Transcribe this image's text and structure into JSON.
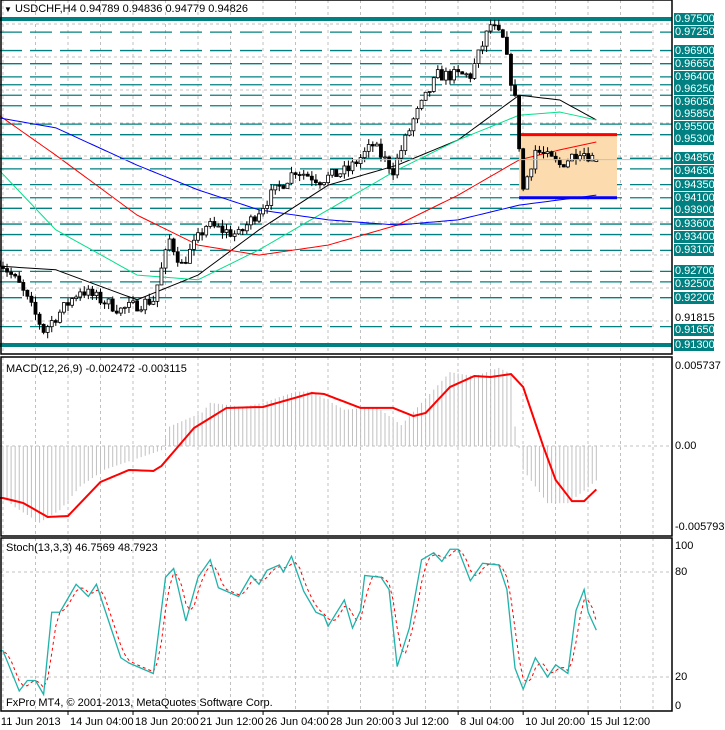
{
  "header": {
    "icon": "arrow-down-icon",
    "symbol": "USDCHF,H4",
    "open": "0.94789",
    "high": "0.94836",
    "low": "0.94779",
    "close": "0.94826"
  },
  "copyright": "FxPro MT4, © 2001-2013, MetaQuotes Software Corp.",
  "colors": {
    "level_line": "#008080",
    "ma_black": "#000000",
    "ma_green": "#00e08a",
    "ma_red": "#ff0000",
    "ma_blue": "#0000ff",
    "box_fill": "#fcdcae",
    "stoch_main": "#20b2aa",
    "stoch_signal": "#ff0000",
    "macd_hist": "#c0c0c0",
    "macd_signal": "#ff0000"
  },
  "chart_data": [
    {
      "type": "candlestick",
      "title": "USDCHF,H4",
      "ylim": [
        0.913,
        0.975
      ],
      "price_levels": [
        "0.97500",
        "0.97250",
        "0.96900",
        "0.96650",
        "0.96400",
        "0.96250",
        "0.96050",
        "0.95850",
        "0.95500",
        "0.95300",
        "0.94850",
        "0.94650",
        "0.94350",
        "0.94100",
        "0.93900",
        "0.93600",
        "0.93400",
        "0.93100",
        "0.92700",
        "0.92500",
        "0.92200",
        "0.91650",
        "0.91300"
      ],
      "scale_labels": [
        "0.91815"
      ],
      "x_ticks": [
        "11 Jun 2013",
        "14 Jun 04:00",
        "18 Jun 20:00",
        "21 Jun 12:00",
        "26 Jun 04:00",
        "28 Jun 20:00",
        "3 Jul 12:00",
        "8 Jul 04:00",
        "10 Jul 20:00",
        "15 Jul 12:00"
      ],
      "close_trend": [
        [
          "2013-06-11 08:00",
          0.9292
        ],
        [
          "2013-06-12 04:00",
          0.9244
        ],
        [
          "2013-06-13 04:00",
          0.9158
        ],
        [
          "2013-06-14 16:00",
          0.9235
        ],
        [
          "2013-06-18 08:00",
          0.9197
        ],
        [
          "2013-06-19 16:00",
          0.9216
        ],
        [
          "2013-06-20 08:00",
          0.933
        ],
        [
          "2013-06-20 20:00",
          0.9282
        ],
        [
          "2013-06-21 20:00",
          0.9358
        ],
        [
          "2013-06-25 04:00",
          0.9339
        ],
        [
          "2013-06-26 12:00",
          0.9415
        ],
        [
          "2013-06-27 12:00",
          0.9463
        ],
        [
          "2013-06-28 12:00",
          0.9444
        ],
        [
          "2013-07-01 16:00",
          0.9463
        ],
        [
          "2013-07-02 16:00",
          0.951
        ],
        [
          "2013-07-03 12:00",
          0.9463
        ],
        [
          "2013-07-04 08:00",
          0.9558
        ],
        [
          "2013-07-05 08:00",
          0.9643
        ],
        [
          "2013-07-08 16:00",
          0.9643
        ],
        [
          "2013-07-09 12:00",
          0.9739
        ],
        [
          "2013-07-10 00:00",
          0.971
        ],
        [
          "2013-07-10 12:00",
          0.9596
        ],
        [
          "2013-07-10 20:00",
          0.9425
        ],
        [
          "2013-07-11 08:00",
          0.9501
        ],
        [
          "2013-07-12 08:00",
          0.9472
        ],
        [
          "2013-07-15 04:00",
          0.9501
        ],
        [
          "2013-07-15 20:00",
          0.94826
        ]
      ],
      "moving_averages": {
        "dates": [
          "2013-06-11 08:00",
          "2013-06-13 16:00",
          "2013-06-19 00:00",
          "2013-06-21 12:00",
          "2013-06-26 00:00",
          "2013-06-28 20:00",
          "2013-07-03 16:00",
          "2013-07-08 04:00",
          "2013-07-10 16:00",
          "2013-07-12 08:00",
          "2013-07-15 20:00"
        ],
        "black": [
          0.928,
          0.9273,
          0.9216,
          0.9263,
          0.9349,
          0.9434,
          0.9472,
          0.952,
          0.9605,
          0.9596,
          0.9558
        ],
        "green": [
          0.9463,
          0.9349,
          0.9263,
          0.9254,
          0.9311,
          0.9387,
          0.9463,
          0.952,
          0.9567,
          0.9573,
          0.9558
        ],
        "red": [
          0.9567,
          0.9491,
          0.9377,
          0.932,
          0.9301,
          0.932,
          0.9358,
          0.9415,
          0.9482,
          0.9501,
          0.9516
        ],
        "blue": [
          0.9562,
          0.9543,
          0.9472,
          0.9425,
          0.9387,
          0.9368,
          0.9358,
          0.9368,
          0.9396,
          0.9406,
          0.9415
        ]
      },
      "range_box": {
        "from": "2013-07-10 16:00",
        "top": 0.953,
        "bottom": 0.941
      }
    },
    {
      "type": "bar+line",
      "title": "MACD(12,26,9)",
      "values_label": "-0.002472 -0.003115",
      "ylim": [
        -0.005793,
        0.005737
      ],
      "y_labels": [
        "0.005737",
        "0.00",
        "-0.005793"
      ],
      "main": [
        [
          "2013-06-11 12:00",
          -0.0037
        ],
        [
          "2013-06-12 00:00",
          -0.0044
        ],
        [
          "2013-06-13 00:00",
          -0.0055
        ],
        [
          "2013-06-13 20:00",
          -0.0046
        ],
        [
          "2013-06-14 16:00",
          -0.0029
        ],
        [
          "2013-06-17 16:00",
          -0.0017
        ],
        [
          "2013-06-18 20:00",
          -0.001
        ],
        [
          "2013-06-20 00:00",
          -0.0003
        ],
        [
          "2013-06-20 08:00",
          0.0014
        ],
        [
          "2013-06-21 16:00",
          0.0024
        ],
        [
          "2013-06-24 00:00",
          0.0031
        ],
        [
          "2013-06-25 08:00",
          0.0028
        ],
        [
          "2013-06-26 04:00",
          0.0031
        ],
        [
          "2013-06-27 12:00",
          0.0039
        ],
        [
          "2013-06-28 04:00",
          0.0039
        ],
        [
          "2013-07-01 12:00",
          0.0026
        ],
        [
          "2013-07-02 20:00",
          0.0028
        ],
        [
          "2013-07-03 20:00",
          0.0015
        ],
        [
          "2013-07-04 16:00",
          0.0031
        ],
        [
          "2013-07-05 20:00",
          0.0053
        ],
        [
          "2013-07-08 20:00",
          0.005
        ],
        [
          "2013-07-09 20:00",
          0.0056
        ],
        [
          "2013-07-10 08:00",
          0.0052
        ],
        [
          "2013-07-10 12:00",
          0.0014
        ],
        [
          "2013-07-10 20:00",
          -0.0017
        ],
        [
          "2013-07-11 20:00",
          -0.0041
        ],
        [
          "2013-07-12 16:00",
          -0.0041
        ],
        [
          "2013-07-15 08:00",
          -0.0032
        ],
        [
          "2013-07-15 20:00",
          -0.002472
        ]
      ],
      "signal": [
        [
          "2013-06-11 12:00",
          -0.00373
        ],
        [
          "2013-06-12 08:00",
          -0.00409
        ],
        [
          "2013-06-13 08:00",
          -0.00509
        ],
        [
          "2013-06-14 04:00",
          -0.00502
        ],
        [
          "2013-06-17 12:00",
          -0.00258
        ],
        [
          "2013-06-18 16:00",
          -0.00172
        ],
        [
          "2013-06-19 16:00",
          -0.00179
        ],
        [
          "2013-06-20 00:00",
          -0.00143
        ],
        [
          "2013-06-21 08:00",
          0.00129
        ],
        [
          "2013-06-24 16:00",
          0.00273
        ],
        [
          "2013-06-26 04:00",
          0.0028
        ],
        [
          "2013-06-27 04:00",
          0.0033
        ],
        [
          "2013-06-28 04:00",
          0.0038
        ],
        [
          "2013-06-28 16:00",
          0.00373
        ],
        [
          "2013-07-02 04:00",
          0.00273
        ],
        [
          "2013-07-03 12:00",
          0.00273
        ],
        [
          "2013-07-04 08:00",
          0.00215
        ],
        [
          "2013-07-04 20:00",
          0.00237
        ],
        [
          "2013-07-05 20:00",
          0.00423
        ],
        [
          "2013-07-08 20:00",
          0.00502
        ],
        [
          "2013-07-09 12:00",
          0.00495
        ],
        [
          "2013-07-10 08:00",
          0.00516
        ],
        [
          "2013-07-10 20:00",
          0.00423
        ],
        [
          "2013-07-11 16:00",
          -7e-05
        ],
        [
          "2013-07-12 04:00",
          -0.00244
        ],
        [
          "2013-07-12 20:00",
          -0.00395
        ],
        [
          "2013-07-15 08:00",
          -0.00395
        ],
        [
          "2013-07-15 20:00",
          -0.003115
        ]
      ]
    },
    {
      "type": "line",
      "title": "Stoch(13,3,3)",
      "values_label": "46.7569 48.7923",
      "ylim": [
        0,
        100
      ],
      "y_labels": [
        "100",
        "80",
        "20",
        "0"
      ],
      "k": [
        [
          "2013-06-11 12:00",
          35
        ],
        [
          "2013-06-12 04:00",
          12
        ],
        [
          "2013-06-12 12:00",
          18
        ],
        [
          "2013-06-12 20:00",
          18
        ],
        [
          "2013-06-13 04:00",
          10
        ],
        [
          "2013-06-13 12:00",
          57
        ],
        [
          "2013-06-13 20:00",
          57
        ],
        [
          "2013-06-14 12:00",
          73
        ],
        [
          "2013-06-17 00:00",
          66
        ],
        [
          "2013-06-17 08:00",
          73
        ],
        [
          "2013-06-18 08:00",
          31
        ],
        [
          "2013-06-18 16:00",
          28
        ],
        [
          "2013-06-19 04:00",
          25
        ],
        [
          "2013-06-19 16:00",
          22
        ],
        [
          "2013-06-20 04:00",
          77
        ],
        [
          "2013-06-20 12:00",
          82
        ],
        [
          "2013-06-21 00:00",
          52
        ],
        [
          "2013-06-21 12:00",
          77
        ],
        [
          "2013-06-24 00:00",
          87
        ],
        [
          "2013-06-24 08:00",
          71
        ],
        [
          "2013-06-25 04:00",
          66
        ],
        [
          "2013-06-25 16:00",
          78
        ],
        [
          "2013-06-26 00:00",
          73
        ],
        [
          "2013-06-26 08:00",
          81
        ],
        [
          "2013-06-26 20:00",
          84
        ],
        [
          "2013-06-27 00:00",
          80
        ],
        [
          "2013-06-27 08:00",
          89
        ],
        [
          "2013-06-27 20:00",
          69
        ],
        [
          "2013-06-28 08:00",
          57
        ],
        [
          "2013-06-28 16:00",
          55
        ],
        [
          "2013-06-28 20:00",
          49
        ],
        [
          "2013-07-01 12:00",
          64
        ],
        [
          "2013-07-01 20:00",
          48
        ],
        [
          "2013-07-02 04:00",
          58
        ],
        [
          "2013-07-02 08:00",
          78
        ],
        [
          "2013-07-03 00:00",
          77
        ],
        [
          "2013-07-03 08:00",
          70
        ],
        [
          "2013-07-03 16:00",
          26
        ],
        [
          "2013-07-04 04:00",
          48
        ],
        [
          "2013-07-04 16:00",
          87
        ],
        [
          "2013-07-05 04:00",
          91
        ],
        [
          "2013-07-05 12:00",
          86
        ],
        [
          "2013-07-05 20:00",
          93
        ],
        [
          "2013-07-08 04:00",
          93
        ],
        [
          "2013-07-08 16:00",
          75
        ],
        [
          "2013-07-09 04:00",
          85
        ],
        [
          "2013-07-09 20:00",
          84
        ],
        [
          "2013-07-10 04:00",
          70
        ],
        [
          "2013-07-10 12:00",
          25
        ],
        [
          "2013-07-10 20:00",
          13
        ],
        [
          "2013-07-11 08:00",
          31
        ],
        [
          "2013-07-11 20:00",
          20
        ],
        [
          "2013-07-12 04:00",
          27
        ],
        [
          "2013-07-12 16:00",
          22
        ],
        [
          "2013-07-15 00:00",
          58
        ],
        [
          "2013-07-15 08:00",
          70
        ],
        [
          "2013-07-15 12:00",
          57
        ],
        [
          "2013-07-15 20:00",
          46.7569
        ]
      ]
    }
  ]
}
